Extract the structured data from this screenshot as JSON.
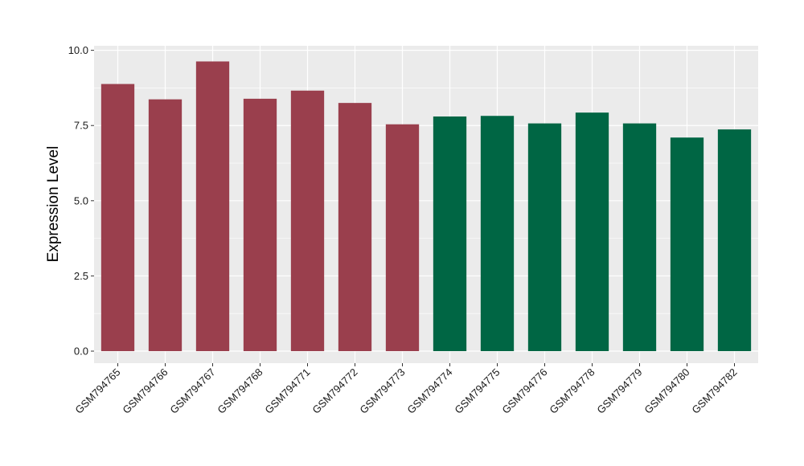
{
  "chart_data": {
    "type": "bar",
    "xlabel": "",
    "ylabel": "Expression Level",
    "ylim": [
      -0.4,
      10.15
    ],
    "yticks": [
      "0.0",
      "2.5",
      "5.0",
      "7.5",
      "10.0"
    ],
    "ytick_values": [
      0,
      2.5,
      5,
      7.5,
      10
    ],
    "grid": true,
    "legend": "none",
    "categories": [
      "GSM794765",
      "GSM794766",
      "GSM794767",
      "GSM794768",
      "GSM794771",
      "GSM794772",
      "GSM794773",
      "GSM794774",
      "GSM794775",
      "GSM794776",
      "GSM794778",
      "GSM794779",
      "GSM794780",
      "GSM794782"
    ],
    "values": [
      8.88,
      8.37,
      9.63,
      8.39,
      8.66,
      8.25,
      7.54,
      7.8,
      7.82,
      7.57,
      7.93,
      7.57,
      7.1,
      7.37
    ],
    "group_colors": [
      "#9a3f4d",
      "#9a3f4d",
      "#9a3f4d",
      "#9a3f4d",
      "#9a3f4d",
      "#9a3f4d",
      "#9a3f4d",
      "#006644",
      "#006644",
      "#006644",
      "#006644",
      "#006644",
      "#006644",
      "#006644"
    ],
    "panel_background": "#ebebeb",
    "gridline_color": "#ffffff"
  }
}
